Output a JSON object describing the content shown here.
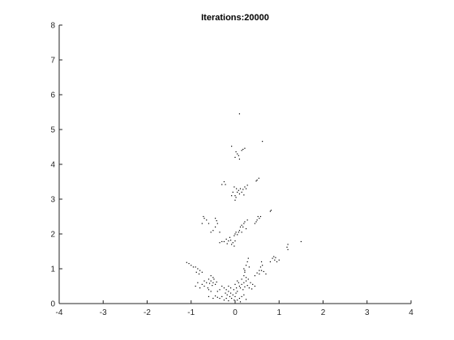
{
  "chart_data": {
    "type": "scatter",
    "title": "Iterations:20000",
    "xlabel": "",
    "ylabel": "",
    "xlim": [
      -4,
      4
    ],
    "ylim": [
      0,
      8
    ],
    "xticks": [
      "-4",
      "-3",
      "-2",
      "-1",
      "0",
      "1",
      "2",
      "3",
      "4"
    ],
    "yticks": [
      "0",
      "1",
      "2",
      "3",
      "4",
      "5",
      "6",
      "7",
      "8"
    ],
    "grid": false,
    "legend": "none",
    "marker_color": "#000000",
    "series": [
      {
        "points": [
          [
            0.1,
            5.45
          ],
          [
            0.62,
            4.66
          ],
          [
            -0.08,
            4.52
          ],
          [
            0.02,
            4.36
          ],
          [
            0.05,
            4.3
          ],
          [
            0.08,
            4.25
          ],
          [
            0.15,
            4.4
          ],
          [
            0.18,
            4.43
          ],
          [
            0.0,
            4.2
          ],
          [
            0.1,
            4.15
          ],
          [
            0.22,
            4.46
          ],
          [
            0.5,
            3.55
          ],
          [
            0.54,
            3.6
          ],
          [
            0.48,
            3.52
          ],
          [
            -0.3,
            3.42
          ],
          [
            -0.25,
            3.5
          ],
          [
            -0.22,
            3.42
          ],
          [
            0.0,
            3.1
          ],
          [
            0.02,
            3.05
          ],
          [
            0.05,
            3.2
          ],
          [
            0.08,
            3.25
          ],
          [
            0.1,
            3.15
          ],
          [
            0.12,
            3.3
          ],
          [
            0.15,
            3.2
          ],
          [
            0.18,
            3.28
          ],
          [
            0.22,
            3.35
          ],
          [
            0.25,
            3.3
          ],
          [
            0.28,
            3.4
          ],
          [
            -0.05,
            3.2
          ],
          [
            -0.08,
            3.1
          ],
          [
            0.0,
            2.97
          ],
          [
            0.03,
            3.3
          ],
          [
            0.2,
            3.12
          ],
          [
            -0.02,
            3.35
          ],
          [
            0.8,
            2.65
          ],
          [
            0.82,
            2.68
          ],
          [
            0.5,
            2.4
          ],
          [
            0.55,
            2.45
          ],
          [
            0.58,
            2.5
          ],
          [
            0.48,
            2.35
          ],
          [
            0.45,
            2.3
          ],
          [
            0.52,
            2.5
          ],
          [
            -0.45,
            2.45
          ],
          [
            -0.42,
            2.38
          ],
          [
            -0.4,
            2.3
          ],
          [
            -0.45,
            2.2
          ],
          [
            -0.5,
            2.1
          ],
          [
            -0.55,
            2.05
          ],
          [
            -0.35,
            2.05
          ],
          [
            -0.6,
            2.3
          ],
          [
            -0.65,
            2.4
          ],
          [
            -0.7,
            2.45
          ],
          [
            -0.72,
            2.5
          ],
          [
            -0.75,
            2.3
          ],
          [
            0.0,
            2.0
          ],
          [
            0.05,
            1.98
          ],
          [
            0.08,
            2.05
          ],
          [
            0.1,
            2.1
          ],
          [
            0.12,
            2.2
          ],
          [
            0.15,
            2.25
          ],
          [
            0.18,
            2.2
          ],
          [
            0.2,
            2.3
          ],
          [
            0.22,
            2.35
          ],
          [
            0.25,
            2.15
          ],
          [
            0.02,
            2.05
          ],
          [
            -0.02,
            1.95
          ],
          [
            0.28,
            2.4
          ],
          [
            0.15,
            2.05
          ],
          [
            -0.2,
            1.85
          ],
          [
            -0.15,
            1.8
          ],
          [
            -0.1,
            1.82
          ],
          [
            -0.05,
            1.75
          ],
          [
            -0.12,
            1.9
          ],
          [
            -0.08,
            1.7
          ],
          [
            -0.02,
            1.65
          ],
          [
            -0.25,
            1.78
          ],
          [
            0.0,
            1.8
          ],
          [
            -0.18,
            1.72
          ],
          [
            -0.3,
            1.78
          ],
          [
            -0.35,
            1.75
          ],
          [
            1.5,
            1.78
          ],
          [
            1.2,
            1.7
          ],
          [
            1.18,
            1.62
          ],
          [
            1.2,
            1.55
          ],
          [
            0.85,
            1.3
          ],
          [
            0.9,
            1.25
          ],
          [
            0.92,
            1.32
          ],
          [
            0.95,
            1.2
          ],
          [
            1.0,
            1.25
          ],
          [
            0.8,
            1.2
          ],
          [
            0.88,
            1.35
          ],
          [
            0.6,
            1.2
          ],
          [
            0.62,
            1.1
          ],
          [
            0.58,
            1.05
          ],
          [
            0.55,
            0.95
          ],
          [
            0.5,
            0.88
          ],
          [
            0.65,
            0.92
          ],
          [
            0.7,
            0.85
          ],
          [
            0.45,
            0.8
          ],
          [
            0.55,
            0.85
          ],
          [
            0.6,
            0.95
          ],
          [
            0.3,
            1.3
          ],
          [
            0.28,
            1.2
          ],
          [
            0.25,
            1.1
          ],
          [
            0.32,
            1.05
          ],
          [
            0.2,
            1.0
          ],
          [
            0.22,
            0.9
          ],
          [
            -1.1,
            1.18
          ],
          [
            -1.05,
            1.15
          ],
          [
            -1.0,
            1.1
          ],
          [
            -0.95,
            1.05
          ],
          [
            -0.85,
            1.0
          ],
          [
            -0.8,
            0.95
          ],
          [
            -0.88,
            0.9
          ],
          [
            -0.75,
            0.9
          ],
          [
            -0.82,
            0.85
          ],
          [
            -0.9,
            1.05
          ],
          [
            -0.55,
            0.8
          ],
          [
            -0.5,
            0.75
          ],
          [
            -0.6,
            0.7
          ],
          [
            -0.55,
            0.65
          ],
          [
            -0.5,
            0.6
          ],
          [
            -0.45,
            0.55
          ],
          [
            -0.52,
            0.52
          ],
          [
            -0.58,
            0.58
          ],
          [
            -0.65,
            0.6
          ],
          [
            -0.7,
            0.5
          ],
          [
            -0.62,
            0.45
          ],
          [
            -0.48,
            0.7
          ],
          [
            -0.42,
            0.62
          ],
          [
            -0.3,
            0.5
          ],
          [
            -0.25,
            0.45
          ],
          [
            -0.2,
            0.4
          ],
          [
            -0.15,
            0.35
          ],
          [
            -0.1,
            0.3
          ],
          [
            -0.05,
            0.25
          ],
          [
            0.0,
            0.2
          ],
          [
            -0.12,
            0.2
          ],
          [
            -0.18,
            0.25
          ],
          [
            -0.22,
            0.3
          ],
          [
            -0.08,
            0.15
          ],
          [
            -0.02,
            0.1
          ],
          [
            0.02,
            0.3
          ],
          [
            0.05,
            0.35
          ],
          [
            -0.03,
            0.4
          ],
          [
            -0.1,
            0.45
          ],
          [
            -0.15,
            0.5
          ],
          [
            0.0,
            0.55
          ],
          [
            0.03,
            0.45
          ],
          [
            0.1,
            0.5
          ],
          [
            0.15,
            0.55
          ],
          [
            0.2,
            0.6
          ],
          [
            0.25,
            0.65
          ],
          [
            0.3,
            0.7
          ],
          [
            0.35,
            0.6
          ],
          [
            0.4,
            0.55
          ],
          [
            0.45,
            0.5
          ],
          [
            0.12,
            0.45
          ],
          [
            0.18,
            0.4
          ],
          [
            0.22,
            0.48
          ],
          [
            0.28,
            0.52
          ],
          [
            0.08,
            0.6
          ],
          [
            0.15,
            0.7
          ],
          [
            0.05,
            0.65
          ],
          [
            0.32,
            0.45
          ],
          [
            0.38,
            0.42
          ],
          [
            0.25,
            0.75
          ],
          [
            0.2,
            0.8
          ],
          [
            0.22,
            0.95
          ],
          [
            -0.35,
            0.15
          ],
          [
            -0.3,
            0.2
          ],
          [
            -0.4,
            0.18
          ],
          [
            -0.25,
            0.1
          ],
          [
            -0.2,
            0.15
          ],
          [
            0.1,
            0.15
          ],
          [
            0.15,
            0.2
          ],
          [
            0.2,
            0.25
          ],
          [
            0.05,
            0.1
          ],
          [
            -0.45,
            0.22
          ],
          [
            -0.5,
            0.15
          ],
          [
            -0.15,
            0.08
          ],
          [
            0.12,
            0.05
          ],
          [
            0.25,
            0.12
          ],
          [
            -0.7,
            0.65
          ],
          [
            -0.75,
            0.55
          ],
          [
            -0.85,
            0.6
          ],
          [
            -0.9,
            0.5
          ],
          [
            -0.8,
            0.45
          ],
          [
            -0.6,
            0.4
          ],
          [
            -0.55,
            0.35
          ],
          [
            -0.4,
            0.35
          ],
          [
            -0.35,
            0.4
          ],
          [
            -0.6,
            0.2
          ]
        ]
      }
    ]
  }
}
